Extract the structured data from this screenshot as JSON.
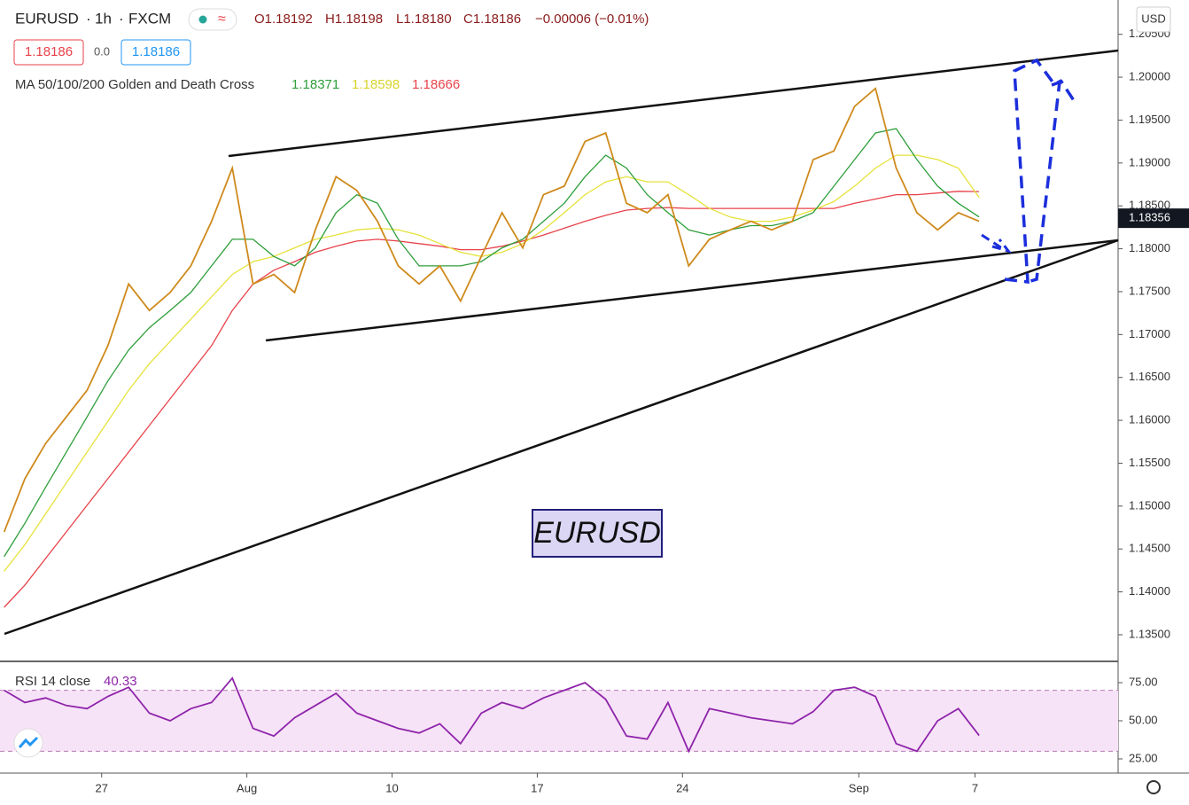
{
  "header": {
    "symbol": "EURUSD",
    "interval": "1h",
    "exchange": "FXCM",
    "ohlc": [
      "O1.18192",
      "H1.18198",
      "L1.18180",
      "C1.18186",
      "−0.00006 (−0.01%)"
    ],
    "bid": "1.18186",
    "spread": "0.0",
    "ask": "1.18186",
    "indicator": "MA 50/100/200 Golden and Death Cross",
    "currency": "USD"
  },
  "chart_data": [
    {
      "type": "line",
      "annotation": "EURUSD",
      "xlim": [
        -0.2,
        53.7
      ],
      "xticks": [
        {
          "value": 4.7,
          "label": "27"
        },
        {
          "value": 11.7,
          "label": "Aug"
        },
        {
          "value": 18.7,
          "label": "10"
        },
        {
          "value": 25.7,
          "label": "17"
        },
        {
          "value": 32.7,
          "label": "24"
        },
        {
          "value": 41.2,
          "label": "Sep"
        },
        {
          "value": 46.8,
          "label": "7"
        }
      ],
      "ylim": [
        1.132,
        1.209
      ],
      "yticks": [
        {
          "value": 1.135,
          "label": "1.13500"
        },
        {
          "value": 1.14,
          "label": "1.14000"
        },
        {
          "value": 1.145,
          "label": "1.14500"
        },
        {
          "value": 1.15,
          "label": "1.15000"
        },
        {
          "value": 1.155,
          "label": "1.15500"
        },
        {
          "value": 1.16,
          "label": "1.16000"
        },
        {
          "value": 1.165,
          "label": "1.16500"
        },
        {
          "value": 1.17,
          "label": "1.17000"
        },
        {
          "value": 1.175,
          "label": "1.17500"
        },
        {
          "value": 1.18,
          "label": "1.18000"
        },
        {
          "value": 1.185,
          "label": "1.18500"
        },
        {
          "value": 1.19,
          "label": "1.19000"
        },
        {
          "value": 1.195,
          "label": "1.19500"
        },
        {
          "value": 1.2,
          "label": "1.20000"
        },
        {
          "value": 1.205,
          "label": "1.20500"
        }
      ],
      "last_price": {
        "value": 1.18356,
        "label": "1.18356"
      },
      "series": [
        {
          "color": "#cf8a1c",
          "values": [
            1.147,
            1.1532,
            1.1573,
            1.1604,
            1.1635,
            1.1687,
            1.1759,
            1.1728,
            1.1749,
            1.178,
            1.1832,
            1.1894,
            1.1759,
            1.177,
            1.1749,
            1.1822,
            1.1884,
            1.1868,
            1.1832,
            1.178,
            1.1759,
            1.178,
            1.1739,
            1.1791,
            1.1842,
            1.1801,
            1.1863,
            1.1873,
            1.1925,
            1.1935,
            1.1853,
            1.1842,
            1.1863,
            1.178,
            1.1811,
            1.1822,
            1.1832,
            1.1822,
            1.1832,
            1.1904,
            1.1914,
            1.1966,
            1.1987,
            1.1894,
            1.1842,
            1.1822,
            1.1842,
            1.1832
          ]
        },
        {
          "color": "#2e9e3a",
          "values": [
            1.1441,
            1.148,
            1.1522,
            1.1563,
            1.1604,
            1.1646,
            1.1682,
            1.1708,
            1.1728,
            1.1749,
            1.178,
            1.1811,
            1.1811,
            1.1791,
            1.178,
            1.1801,
            1.1842,
            1.1863,
            1.1853,
            1.1811,
            1.178,
            1.178,
            1.178,
            1.1785,
            1.1801,
            1.1811,
            1.1832,
            1.1853,
            1.1884,
            1.1909,
            1.1894,
            1.1863,
            1.1842,
            1.1822,
            1.1816,
            1.1822,
            1.1827,
            1.1827,
            1.1832,
            1.1842,
            1.1873,
            1.1904,
            1.1935,
            1.194,
            1.1904,
            1.1873,
            1.1853,
            1.18371
          ]
        },
        {
          "color": "#e6e23a",
          "values": [
            1.1424,
            1.1455,
            1.1491,
            1.1527,
            1.1563,
            1.1599,
            1.1635,
            1.1666,
            1.1692,
            1.1718,
            1.1744,
            1.177,
            1.1785,
            1.1791,
            1.1801,
            1.1811,
            1.1816,
            1.1822,
            1.1824,
            1.1822,
            1.1816,
            1.1806,
            1.1796,
            1.1791,
            1.1796,
            1.1806,
            1.1822,
            1.1842,
            1.1863,
            1.1878,
            1.1884,
            1.1878,
            1.1878,
            1.1863,
            1.1847,
            1.1837,
            1.1832,
            1.1832,
            1.1837,
            1.1845,
            1.1855,
            1.1873,
            1.1894,
            1.1909,
            1.1909,
            1.1904,
            1.1894,
            1.18598
          ]
        },
        {
          "color": "#e8424a",
          "values": [
            1.1382,
            1.1408,
            1.1439,
            1.147,
            1.1501,
            1.1532,
            1.1563,
            1.1594,
            1.1625,
            1.1656,
            1.1687,
            1.1728,
            1.1759,
            1.1775,
            1.1785,
            1.1796,
            1.1803,
            1.1809,
            1.1811,
            1.1809,
            1.1806,
            1.1803,
            1.1799,
            1.1799,
            1.1803,
            1.1809,
            1.1816,
            1.1824,
            1.1832,
            1.1839,
            1.1845,
            1.1847,
            1.1848,
            1.1847,
            1.1847,
            1.1847,
            1.1847,
            1.1847,
            1.1847,
            1.1847,
            1.1847,
            1.1853,
            1.1858,
            1.1863,
            1.1863,
            1.1865,
            1.1867,
            1.18666
          ]
        }
      ]
    },
    {
      "type": "line",
      "title": "RSI 14 close",
      "ylim": [
        15.7,
        87.8
      ],
      "yticks": [
        {
          "value": 25,
          "label": "25.00"
        },
        {
          "value": 50,
          "label": "50.00"
        },
        {
          "value": 75,
          "label": "75.00"
        }
      ],
      "band": [
        30,
        70
      ],
      "band_color": "#f7e3f7",
      "series": [
        {
          "color": "#8e24aa",
          "values": [
            70,
            62,
            65,
            60,
            58,
            66,
            72,
            55,
            50,
            58,
            62,
            78,
            45,
            40,
            52,
            60,
            68,
            55,
            50,
            45,
            42,
            48,
            35,
            55,
            62,
            58,
            65,
            70,
            75,
            64,
            40,
            38,
            62,
            30,
            58,
            55,
            52,
            50,
            48,
            56,
            70,
            72,
            66,
            35,
            30,
            50,
            58,
            40.33
          ]
        }
      ]
    }
  ]
}
